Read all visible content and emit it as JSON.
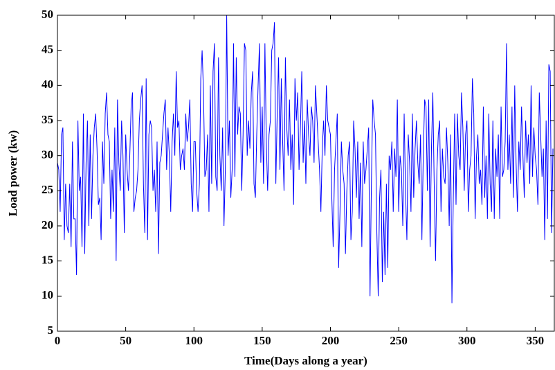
{
  "chart_data": {
    "type": "line",
    "x_label": "Time(Days along a year)",
    "y_label": "Load power (kw)",
    "color": "#0000ff",
    "xlim": [
      0,
      364
    ],
    "ylim": [
      5,
      50
    ],
    "xticks": [
      0,
      50,
      100,
      150,
      200,
      250,
      300,
      350
    ],
    "yticks": [
      5,
      10,
      15,
      20,
      25,
      30,
      35,
      40,
      45,
      50
    ],
    "grid": false,
    "x": [
      0,
      1,
      2,
      3,
      4,
      5,
      6,
      7,
      8,
      9,
      10,
      11,
      12,
      13,
      14,
      15,
      16,
      17,
      18,
      19,
      20,
      21,
      22,
      23,
      24,
      25,
      26,
      27,
      28,
      29,
      30,
      31,
      32,
      33,
      34,
      35,
      36,
      37,
      38,
      39,
      40,
      41,
      42,
      43,
      44,
      45,
      46,
      47,
      48,
      49,
      50,
      51,
      52,
      53,
      54,
      55,
      56,
      57,
      58,
      59,
      60,
      61,
      62,
      63,
      64,
      65,
      66,
      67,
      68,
      69,
      70,
      71,
      72,
      73,
      74,
      75,
      76,
      77,
      78,
      79,
      80,
      81,
      82,
      83,
      84,
      85,
      86,
      87,
      88,
      89,
      90,
      91,
      92,
      93,
      94,
      95,
      96,
      97,
      98,
      99,
      100,
      101,
      102,
      103,
      104,
      105,
      106,
      107,
      108,
      109,
      110,
      111,
      112,
      113,
      114,
      115,
      116,
      117,
      118,
      119,
      120,
      121,
      122,
      123,
      124,
      125,
      126,
      127,
      128,
      129,
      130,
      131,
      132,
      133,
      134,
      135,
      136,
      137,
      138,
      139,
      140,
      141,
      142,
      143,
      144,
      145,
      146,
      147,
      148,
      149,
      150,
      151,
      152,
      153,
      154,
      155,
      156,
      157,
      158,
      159,
      160,
      161,
      162,
      163,
      164,
      165,
      166,
      167,
      168,
      169,
      170,
      171,
      172,
      173,
      174,
      175,
      176,
      177,
      178,
      179,
      180,
      181,
      182,
      183,
      184,
      185,
      186,
      187,
      188,
      189,
      190,
      191,
      192,
      193,
      194,
      195,
      196,
      197,
      198,
      199,
      200,
      201,
      202,
      203,
      204,
      205,
      206,
      207,
      208,
      209,
      210,
      211,
      212,
      213,
      214,
      215,
      216,
      217,
      218,
      219,
      220,
      221,
      222,
      223,
      224,
      225,
      226,
      227,
      228,
      229,
      230,
      231,
      232,
      233,
      234,
      235,
      236,
      237,
      238,
      239,
      240,
      241,
      242,
      243,
      244,
      245,
      246,
      247,
      248,
      249,
      250,
      251,
      252,
      253,
      254,
      255,
      256,
      257,
      258,
      259,
      260,
      261,
      262,
      263,
      264,
      265,
      266,
      267,
      268,
      269,
      270,
      271,
      272,
      273,
      274,
      275,
      276,
      277,
      278,
      279,
      280,
      281,
      282,
      283,
      284,
      285,
      286,
      287,
      288,
      289,
      290,
      291,
      292,
      293,
      294,
      295,
      296,
      297,
      298,
      299,
      300,
      301,
      302,
      303,
      304,
      305,
      306,
      307,
      308,
      309,
      310,
      311,
      312,
      313,
      314,
      315,
      316,
      317,
      318,
      319,
      320,
      321,
      322,
      323,
      324,
      325,
      326,
      327,
      328,
      329,
      330,
      331,
      332,
      333,
      334,
      335,
      336,
      337,
      338,
      339,
      340,
      341,
      342,
      343,
      344,
      345,
      346,
      347,
      348,
      349,
      350,
      351,
      352,
      353,
      354,
      355,
      356,
      357,
      358,
      359,
      360,
      361,
      362,
      363
    ],
    "values": [
      29,
      28,
      22,
      33,
      34,
      18,
      26,
      20,
      19,
      26,
      17,
      32,
      21,
      21,
      13,
      35,
      25,
      27,
      17,
      36,
      16,
      29,
      35,
      20,
      33,
      21,
      30,
      34,
      36,
      31,
      23,
      24,
      18,
      32,
      26,
      36,
      39,
      33,
      32,
      21,
      28,
      22,
      34,
      15,
      38,
      29,
      25,
      35,
      30,
      19,
      33,
      28,
      25,
      30,
      37,
      39,
      22,
      24,
      25,
      28,
      35,
      38,
      40,
      26,
      19,
      41,
      18,
      33,
      35,
      34,
      25,
      28,
      22,
      32,
      16,
      29,
      30,
      33,
      36,
      38,
      28,
      34,
      30,
      22,
      32,
      36,
      30,
      42,
      34,
      35,
      28,
      30,
      31,
      28,
      36,
      32,
      34,
      38,
      26,
      22,
      32,
      32,
      25,
      22,
      26,
      41,
      45,
      39,
      27,
      28,
      33,
      22,
      40,
      26,
      42,
      46,
      27,
      25,
      44,
      30,
      25,
      34,
      20,
      28,
      50,
      30,
      35,
      24,
      28,
      46,
      27,
      44,
      33,
      37,
      36,
      25,
      33,
      46,
      45,
      30,
      35,
      31,
      39,
      42,
      26,
      24,
      33,
      40,
      46,
      29,
      37,
      26,
      46,
      32,
      25,
      33,
      35,
      45,
      46,
      49,
      26,
      36,
      44,
      28,
      41,
      32,
      25,
      44,
      34,
      30,
      38,
      28,
      33,
      23,
      41,
      35,
      39,
      28,
      34,
      42,
      29,
      35,
      26,
      38,
      33,
      30,
      37,
      35,
      29,
      40,
      36,
      32,
      28,
      22,
      31,
      35,
      30,
      40,
      35,
      34,
      33,
      24,
      17,
      28,
      32,
      36,
      14,
      22,
      32,
      28,
      26,
      16,
      25,
      30,
      32,
      18,
      22,
      35,
      31,
      24,
      32,
      21,
      29,
      17,
      32,
      26,
      28,
      31,
      34,
      10,
      26,
      38,
      35,
      33,
      19,
      10,
      24,
      28,
      12,
      22,
      13,
      26,
      14,
      30,
      28,
      32,
      22,
      31,
      27,
      38,
      22,
      30,
      28,
      20,
      36,
      25,
      18,
      33,
      29,
      22,
      36,
      24,
      31,
      35,
      29,
      26,
      33,
      18,
      30,
      38,
      37,
      25,
      38,
      17,
      31,
      39,
      26,
      15,
      28,
      33,
      35,
      22,
      31,
      27,
      26,
      34,
      29,
      20,
      33,
      9,
      24,
      36,
      23,
      36,
      30,
      28,
      39,
      34,
      25,
      33,
      35,
      22,
      28,
      30,
      41,
      36,
      21,
      30,
      33,
      26,
      28,
      23,
      37,
      24,
      30,
      21,
      36,
      26,
      22,
      35,
      21,
      31,
      27,
      33,
      21,
      37,
      27,
      28,
      32,
      46,
      28,
      33,
      26,
      37,
      24,
      40,
      29,
      22,
      32,
      28,
      37,
      30,
      24,
      35,
      29,
      33,
      26,
      40,
      27,
      34,
      30,
      28,
      23,
      39,
      33,
      27,
      31,
      18,
      35,
      21,
      43,
      42,
      19,
      31
    ]
  }
}
